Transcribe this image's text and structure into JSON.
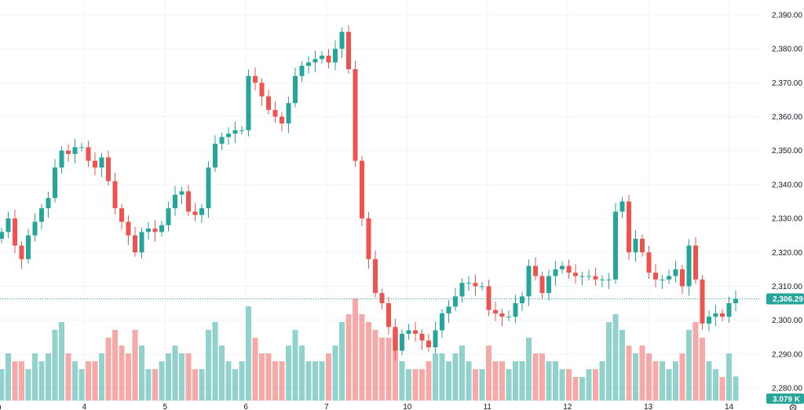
{
  "chart_data": {
    "type": "candlestick",
    "title": "",
    "colors": {
      "up": "#26a69a",
      "down": "#ef5350",
      "up_volume": "#26a69a",
      "down_volume": "#ef5350",
      "last_price": "#26a69a",
      "grid": "#f0f3fa"
    },
    "first_open": 2324,
    "close": [
      2326,
      2330,
      2322,
      2318,
      2325,
      2329,
      2333,
      2336,
      2345,
      2350,
      2349,
      2351,
      2351,
      2347,
      2345,
      2348,
      2341,
      2333,
      2329,
      2325,
      2320,
      2326,
      2327,
      2326,
      2328,
      2333,
      2337,
      2338,
      2332,
      2331,
      2333,
      2345,
      2352,
      2354,
      2355,
      2356,
      2356,
      2372,
      2370,
      2366,
      2362,
      2360,
      2358,
      2364,
      2372,
      2375,
      2376,
      2377,
      2378,
      2376,
      2380,
      2385,
      2374,
      2347,
      2330,
      2318,
      2308,
      2305,
      2298,
      2291,
      2296,
      2297,
      2296,
      2294,
      2292,
      2297,
      2302,
      2304,
      2307,
      2311,
      2311,
      2310,
      2310,
      2303,
      2302,
      2301,
      2301,
      2305,
      2307,
      2316,
      2313,
      2308,
      2313,
      2315,
      2316,
      2314,
      2313,
      2313,
      2313,
      2312,
      2312,
      2312,
      2332,
      2335,
      2320,
      2324,
      2320,
      2314,
      2312,
      2312,
      2313,
      2315,
      2310,
      2322,
      2312,
      2299,
      2301,
      2302,
      2301,
      2305,
      2306.29
    ],
    "volume_k": [
      4,
      6,
      5,
      5,
      4,
      6,
      5,
      6,
      9,
      10,
      6,
      5,
      4,
      5,
      5,
      6,
      8,
      9,
      7,
      6,
      9,
      7,
      4,
      4,
      5,
      6,
      7,
      6,
      6,
      4,
      4,
      9,
      10,
      7,
      5,
      4,
      5,
      12,
      8,
      6,
      6,
      5,
      5,
      7,
      9,
      7,
      5,
      5,
      5,
      6,
      7,
      10,
      11,
      13,
      11,
      10,
      9,
      8,
      8,
      9,
      5,
      4,
      4,
      4,
      5,
      6,
      6,
      5,
      6,
      7,
      5,
      4,
      4,
      7,
      5,
      5,
      4,
      5,
      5,
      8,
      6,
      6,
      5,
      5,
      4,
      4,
      3,
      3,
      4,
      4,
      5,
      10,
      11,
      9,
      7,
      6,
      7,
      6,
      5,
      5,
      4,
      5,
      6,
      9,
      10,
      8,
      5,
      4,
      3,
      6,
      3.079
    ],
    "ylim": [
      2280,
      2390
    ],
    "y_ticks": [
      "2,280.00",
      "2,290.00",
      "2,300.00",
      "2,310.00",
      "2,320.00",
      "2,330.00",
      "2,340.00",
      "2,350.00",
      "2,360.00",
      "2,370.00",
      "2,380.00",
      "2,390.00"
    ],
    "y_tick_values": [
      2280,
      2290,
      2300,
      2310,
      2320,
      2330,
      2340,
      2350,
      2360,
      2370,
      2380,
      2390
    ],
    "x_ticks": [
      "Jun",
      "4",
      "5",
      "6",
      "7",
      "10",
      "11",
      "12",
      "13",
      "14"
    ],
    "x_tick_index": [
      -1,
      12.4,
      24.5,
      36.6,
      48.7,
      60.8,
      72.8,
      84.8,
      96.9,
      109
    ],
    "last_price": 2306.29,
    "last_price_label": "2,306.29",
    "last_volume_label": "3.079 K"
  }
}
